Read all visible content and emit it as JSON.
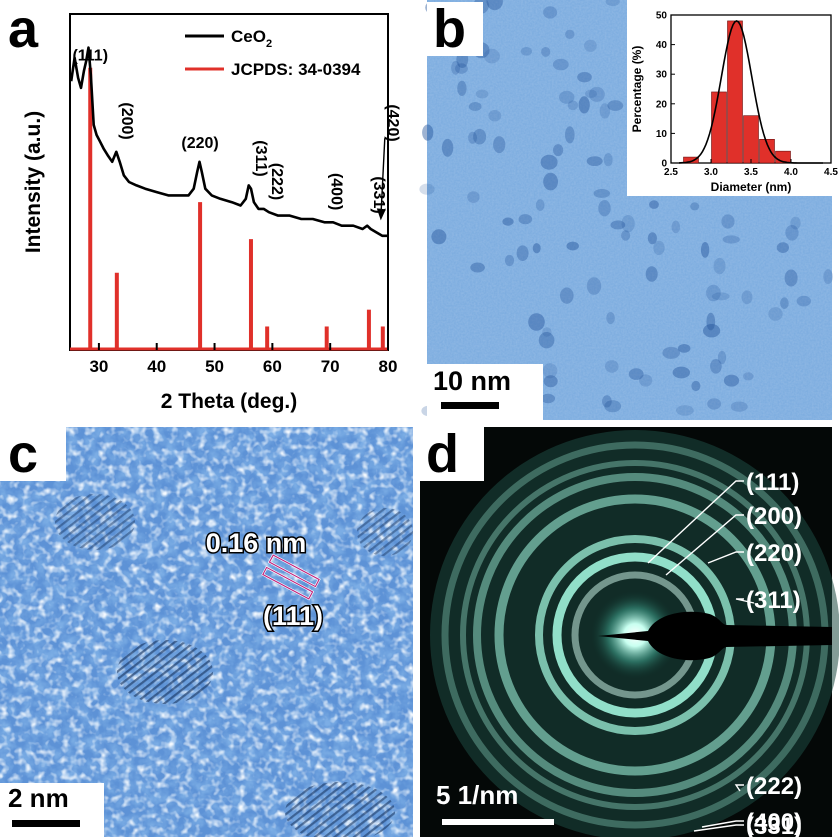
{
  "panels": {
    "a": {
      "letter": "a"
    },
    "b": {
      "letter": "b",
      "scale_bar": "10 nm",
      "inset": {
        "ylabel": "Percentage (%)",
        "xlabel": "Diameter (nm)"
      }
    },
    "c": {
      "letter": "c",
      "scale_bar": "2 nm",
      "spacing": "0.16 nm",
      "plane": "(111)"
    },
    "d": {
      "letter": "d",
      "scale_bar": "5 1/nm",
      "rings": [
        "(111)",
        "(200)",
        "(220)",
        "(311)",
        "(222)",
        "(400)",
        "(331)"
      ]
    }
  },
  "chart_data": [
    {
      "type": "line",
      "panel": "a",
      "xlabel": "2 Theta (deg.)",
      "ylabel": "Intensity (a.u.)",
      "xlim": [
        25,
        80
      ],
      "x_ticks": [
        "30",
        "40",
        "50",
        "60",
        "70",
        "80"
      ],
      "legend": {
        "placement": "top-right",
        "entries": [
          {
            "name": "CeO",
            "sub": "2",
            "color": "#000000"
          },
          {
            "name": "JCPDS: 34-0394",
            "color": "#e0302a"
          }
        ]
      },
      "series": [
        {
          "name": "CeO2",
          "color": "#000000",
          "points": [
            [
              25.2,
              0.8
            ],
            [
              25.8,
              0.87
            ],
            [
              26.4,
              0.81
            ],
            [
              26.9,
              0.78
            ],
            [
              27.4,
              0.83
            ],
            [
              27.8,
              0.86
            ],
            [
              28.2,
              0.9
            ],
            [
              28.6,
              0.82
            ],
            [
              29.1,
              0.67
            ],
            [
              29.6,
              0.64
            ],
            [
              30.2,
              0.62
            ],
            [
              30.8,
              0.6
            ],
            [
              31.5,
              0.58
            ],
            [
              32.3,
              0.56
            ],
            [
              33.0,
              0.59
            ],
            [
              33.6,
              0.56
            ],
            [
              34.3,
              0.52
            ],
            [
              35.2,
              0.5
            ],
            [
              36.5,
              0.49
            ],
            [
              38.0,
              0.48
            ],
            [
              40.0,
              0.47
            ],
            [
              42.0,
              0.46
            ],
            [
              44.0,
              0.46
            ],
            [
              45.5,
              0.46
            ],
            [
              46.4,
              0.48
            ],
            [
              47.0,
              0.53
            ],
            [
              47.4,
              0.56
            ],
            [
              47.8,
              0.53
            ],
            [
              48.4,
              0.48
            ],
            [
              49.5,
              0.46
            ],
            [
              51.0,
              0.45
            ],
            [
              53.0,
              0.44
            ],
            [
              54.5,
              0.43
            ],
            [
              55.4,
              0.45
            ],
            [
              55.9,
              0.49
            ],
            [
              56.3,
              0.48
            ],
            [
              56.8,
              0.44
            ],
            [
              57.6,
              0.42
            ],
            [
              58.5,
              0.42
            ],
            [
              59.4,
              0.41
            ],
            [
              61.0,
              0.4
            ],
            [
              63.0,
              0.4
            ],
            [
              65.0,
              0.39
            ],
            [
              67.0,
              0.39
            ],
            [
              69.0,
              0.38
            ],
            [
              70.5,
              0.38
            ],
            [
              72.0,
              0.37
            ],
            [
              74.0,
              0.37
            ],
            [
              75.6,
              0.36
            ],
            [
              76.4,
              0.37
            ],
            [
              77.0,
              0.36
            ],
            [
              78.0,
              0.35
            ],
            [
              79.0,
              0.34
            ],
            [
              80.0,
              0.34
            ]
          ]
        }
      ],
      "reference_lines": {
        "name": "JCPDS: 34-0394",
        "color": "#e0302a",
        "positions": [
          28.5,
          33.1,
          47.5,
          56.3,
          59.1,
          69.4,
          76.7,
          79.1
        ],
        "heights": [
          0.84,
          0.23,
          0.44,
          0.33,
          0.07,
          0.07,
          0.12,
          0.07
        ]
      },
      "annotations": [
        {
          "text": "(111)",
          "x": 28.5,
          "rotated": false
        },
        {
          "text": "(200)",
          "x": 33.1,
          "rotated": true
        },
        {
          "text": "(220)",
          "x": 47.5,
          "rotated": false
        },
        {
          "text": "(311)",
          "x": 56.3,
          "rotated": true
        },
        {
          "text": "(222)",
          "x": 59.1,
          "rotated": true
        },
        {
          "text": "(400)",
          "x": 69.4,
          "rotated": true
        },
        {
          "text": "(331)",
          "x": 76.7,
          "rotated": true
        },
        {
          "text": "(420)",
          "x": 79.1,
          "rotated": true
        }
      ]
    },
    {
      "type": "bar",
      "panel": "b-inset",
      "xlabel": "Diameter (nm)",
      "ylabel": "Percentage (%)",
      "xlim": [
        2.5,
        4.5
      ],
      "ylim": [
        0,
        50
      ],
      "x_ticks": [
        "2.5",
        "3.0",
        "3.5",
        "4.0",
        "4.5"
      ],
      "y_ticks": [
        "0",
        "10",
        "20",
        "30",
        "40",
        "50"
      ],
      "categories": [
        2.75,
        3.1,
        3.3,
        3.5,
        3.7,
        3.9,
        4.1
      ],
      "values": [
        2,
        24,
        48,
        16,
        8,
        4,
        0
      ],
      "bar_color": "#e0302a",
      "fit": {
        "type": "gaussian",
        "center": 3.32,
        "sigma": 0.19,
        "peak": 48,
        "color": "#000000"
      }
    }
  ]
}
